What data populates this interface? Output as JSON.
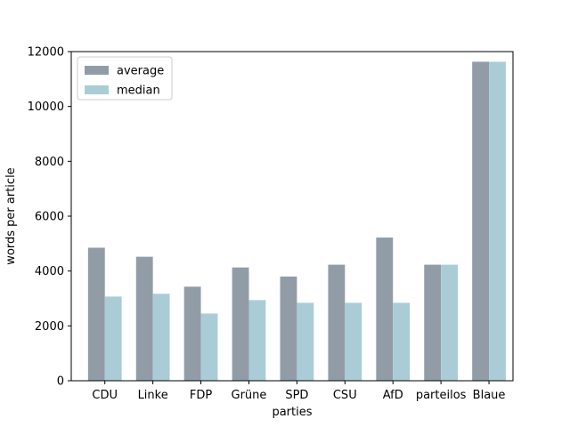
{
  "chart_data": {
    "type": "bar",
    "title": "",
    "xlabel": "parties",
    "ylabel": "words per article",
    "categories": [
      "CDU",
      "Linke",
      "FDP",
      "Grüne",
      "SPD",
      "CSU",
      "AfD",
      "parteilos",
      "Blaue"
    ],
    "series": [
      {
        "name": "average",
        "color": "#929ca6",
        "values": [
          4850,
          4520,
          3430,
          4130,
          3800,
          4230,
          5220,
          4230,
          11630
        ]
      },
      {
        "name": "median",
        "color": "#aaccd7",
        "values": [
          3070,
          3170,
          2450,
          2940,
          2840,
          2840,
          2840,
          4230,
          11630
        ]
      }
    ],
    "ylim": [
      0,
      12000
    ],
    "yticks": [
      0,
      2000,
      4000,
      6000,
      8000,
      10000,
      12000
    ],
    "grid": false,
    "legend_position": "top-left"
  }
}
